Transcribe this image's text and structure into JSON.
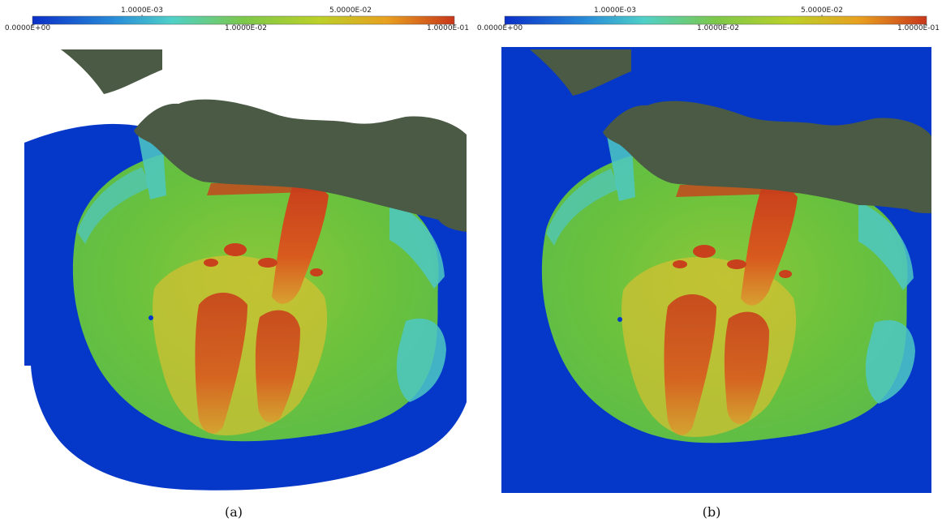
{
  "figure": {
    "panels": [
      {
        "id": "a",
        "caption": "(a)",
        "colorbar": {
          "colors": [
            "#0a2fc8",
            "#2a8fd8",
            "#4fd0c8",
            "#7cc84a",
            "#bcd028",
            "#e8a020",
            "#c8361a"
          ],
          "top_labels": [
            "1.0000E-03",
            "5.0000E-02"
          ],
          "bottom_labels": [
            "0.0000E+00",
            "1.0000E-02",
            "1.0000E-01"
          ]
        }
      },
      {
        "id": "b",
        "caption": "(b)",
        "colorbar": {
          "colors": [
            "#0a2fc8",
            "#2a8fd8",
            "#4fd0c8",
            "#7cc84a",
            "#bcd028",
            "#e8a020",
            "#c8361a"
          ],
          "top_labels": [
            "1.0000E-03",
            "5.0000E-02"
          ],
          "bottom_labels": [
            "0.0000E+00",
            "1.0000E-02",
            "1.0000E-01"
          ]
        }
      }
    ],
    "colors": {
      "ocean": "#0538c8",
      "land": "#4a5a44",
      "field_green": "#6cc23c",
      "field_yellow": "#d8c030",
      "field_red": "#c8401c",
      "field_cyan": "#4ec8c4"
    }
  }
}
